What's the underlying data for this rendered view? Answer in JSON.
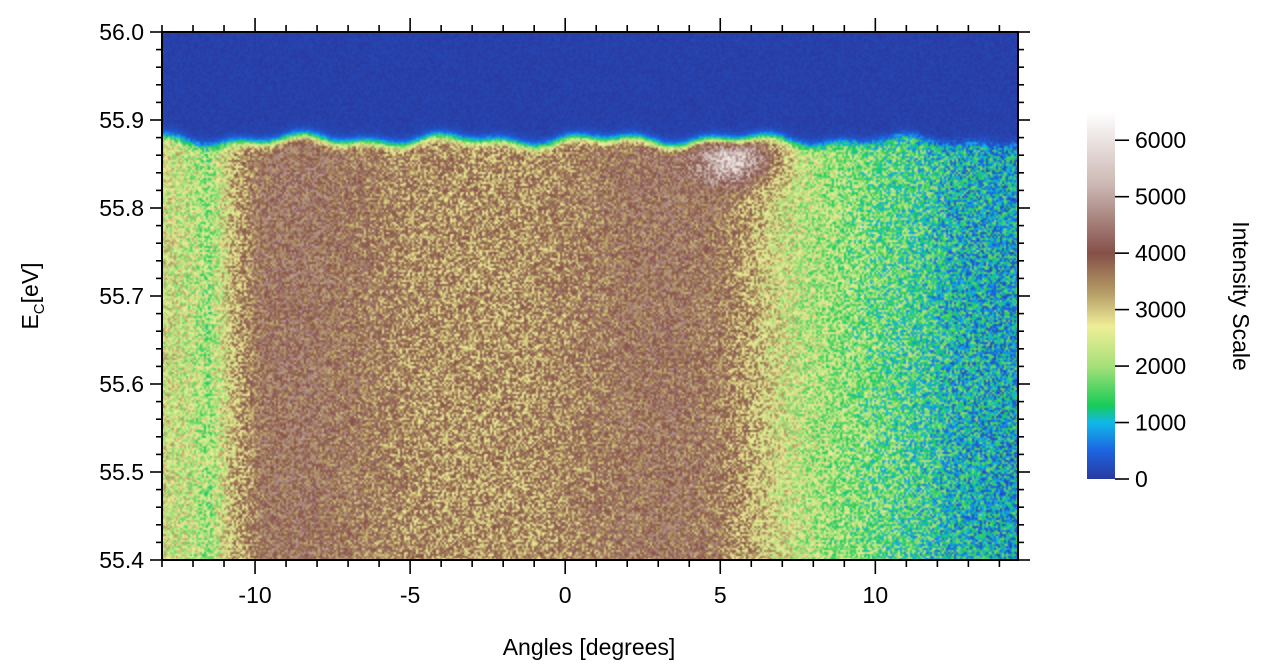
{
  "chart_data": {
    "type": "heatmap",
    "title": "",
    "xlabel": "Angles [degrees]",
    "ylabel_main": "E",
    "ylabel_sub": "C",
    "ylabel_tail": "[eV]",
    "xlim": [
      -13,
      14.6
    ],
    "ylim": [
      55.4,
      56.0
    ],
    "x_ticks": [
      {
        "value": -10,
        "label": "-10"
      },
      {
        "value": -5,
        "label": "-5"
      },
      {
        "value": 0,
        "label": "0"
      },
      {
        "value": 5,
        "label": "5"
      },
      {
        "value": 10,
        "label": "10"
      }
    ],
    "y_ticks": [
      {
        "value": 56.0,
        "label": "56.0"
      },
      {
        "value": 55.9,
        "label": "55.9"
      },
      {
        "value": 55.8,
        "label": "55.8"
      },
      {
        "value": 55.7,
        "label": "55.7"
      },
      {
        "value": 55.6,
        "label": "55.6"
      },
      {
        "value": 55.5,
        "label": "55.5"
      },
      {
        "value": 55.4,
        "label": "55.4"
      }
    ],
    "fermi_edge_eV": 55.875,
    "colorbar": {
      "label": "Intensity Scale",
      "range": [
        0,
        6500
      ],
      "ticks": [
        {
          "value": 6000,
          "label": "6000"
        },
        {
          "value": 5000,
          "label": "5000"
        },
        {
          "value": 4000,
          "label": "4000"
        },
        {
          "value": 3000,
          "label": "3000"
        },
        {
          "value": 2000,
          "label": "2000"
        },
        {
          "value": 1000,
          "label": "1000"
        },
        {
          "value": 0,
          "label": "0"
        }
      ],
      "colors": [
        {
          "value": 0,
          "color": "#2a3aa0"
        },
        {
          "value": 500,
          "color": "#1c64e0"
        },
        {
          "value": 1000,
          "color": "#10b8e8"
        },
        {
          "value": 1300,
          "color": "#18cc58"
        },
        {
          "value": 2000,
          "color": "#a6e078"
        },
        {
          "value": 2700,
          "color": "#efee98"
        },
        {
          "value": 3300,
          "color": "#b59c66"
        },
        {
          "value": 4000,
          "color": "#855048"
        },
        {
          "value": 5200,
          "color": "#cbb7b3"
        },
        {
          "value": 6500,
          "color": "#ffffff"
        }
      ]
    },
    "intensity_profile": [
      {
        "angle": -13.0,
        "intensity": 2650
      },
      {
        "angle": -12.0,
        "intensity": 2350
      },
      {
        "angle": -11.5,
        "intensity": 2000
      },
      {
        "angle": -10.8,
        "intensity": 3000
      },
      {
        "angle": -9.8,
        "intensity": 4000
      },
      {
        "angle": -8.5,
        "intensity": 4150
      },
      {
        "angle": -7.0,
        "intensity": 3900
      },
      {
        "angle": -5.0,
        "intensity": 3550
      },
      {
        "angle": -3.0,
        "intensity": 3450
      },
      {
        "angle": -1.0,
        "intensity": 3500
      },
      {
        "angle": 0.5,
        "intensity": 3700
      },
      {
        "angle": 2.0,
        "intensity": 3950
      },
      {
        "angle": 3.5,
        "intensity": 4050
      },
      {
        "angle": 5.0,
        "intensity": 3800
      },
      {
        "angle": 6.0,
        "intensity": 3200
      },
      {
        "angle": 7.0,
        "intensity": 2600
      },
      {
        "angle": 8.0,
        "intensity": 2200
      },
      {
        "angle": 10.0,
        "intensity": 1750
      },
      {
        "angle": 11.5,
        "intensity": 1450
      },
      {
        "angle": 12.5,
        "intensity": 1100
      },
      {
        "angle": 14.6,
        "intensity": 900
      }
    ],
    "hotspot": {
      "angle": 5.6,
      "energy_eV": 55.855,
      "intensity": 5600
    }
  }
}
